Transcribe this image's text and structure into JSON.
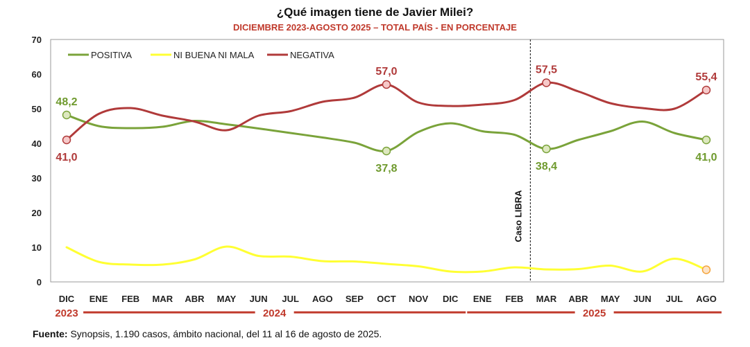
{
  "chart_data": {
    "type": "line",
    "title": "¿Qué imagen tiene de Javier Milei?",
    "subtitle": "DICIEMBRE 2023-AGOSTO 2025 – TOTAL PAÍS - EN PORCENTAJE",
    "categories": [
      "DIC",
      "ENE",
      "FEB",
      "MAR",
      "ABR",
      "MAY",
      "JUN",
      "JUL",
      "AGO",
      "SEP",
      "OCT",
      "NOV",
      "DIC",
      "ENE",
      "FEB",
      "MAR",
      "ABR",
      "MAY",
      "JUN",
      "JUL",
      "AGO"
    ],
    "years": [
      {
        "label": "2023",
        "from": 0,
        "to": 0
      },
      {
        "label": "2024",
        "from": 1,
        "to": 12
      },
      {
        "label": "2025",
        "from": 13,
        "to": 20
      }
    ],
    "ylim": [
      0,
      70
    ],
    "yticks": [
      0,
      10,
      20,
      30,
      40,
      50,
      60,
      70
    ],
    "series": [
      {
        "name": "POSITIVA",
        "color": "#7aa33a",
        "values": [
          48.2,
          45.0,
          44.4,
          44.8,
          46.5,
          45.5,
          44.3,
          43.0,
          41.7,
          40.2,
          37.8,
          43.3,
          45.8,
          43.5,
          42.5,
          38.4,
          41.0,
          43.5,
          46.3,
          43.0,
          41.0
        ]
      },
      {
        "name": "NI BUENA NI MALA",
        "color": "#ffff33",
        "values": [
          10.0,
          5.8,
          5.0,
          5.0,
          6.5,
          10.2,
          7.5,
          7.3,
          6.0,
          5.9,
          5.2,
          4.5,
          3.0,
          3.0,
          4.2,
          3.6,
          3.7,
          4.7,
          3.0,
          6.7,
          3.5
        ]
      },
      {
        "name": "NEGATIVA",
        "color": "#b03a3a",
        "values": [
          41.0,
          48.5,
          50.2,
          48.0,
          46.3,
          43.8,
          48.0,
          49.3,
          52.0,
          53.2,
          57.0,
          51.8,
          50.8,
          51.2,
          52.5,
          57.5,
          55.0,
          51.6,
          50.2,
          50.0,
          55.4
        ]
      }
    ],
    "data_labels": [
      {
        "series": 0,
        "index": 0,
        "text": "48,2",
        "pos": "above"
      },
      {
        "series": 0,
        "index": 10,
        "text": "37,8",
        "pos": "below"
      },
      {
        "series": 0,
        "index": 15,
        "text": "38,4",
        "pos": "below"
      },
      {
        "series": 0,
        "index": 20,
        "text": "41,0",
        "pos": "below"
      },
      {
        "series": 2,
        "index": 0,
        "text": "41,0",
        "pos": "below"
      },
      {
        "series": 2,
        "index": 10,
        "text": "57,0",
        "pos": "above"
      },
      {
        "series": 2,
        "index": 15,
        "text": "57,5",
        "pos": "above"
      },
      {
        "series": 2,
        "index": 20,
        "text": "55,4",
        "pos": "above"
      }
    ],
    "markers": [
      {
        "series": 0,
        "indices": [
          0,
          10,
          15,
          20
        ]
      },
      {
        "series": 1,
        "indices": [
          20
        ]
      },
      {
        "series": 2,
        "indices": [
          0,
          10,
          15,
          20
        ]
      }
    ],
    "annotation": {
      "text": "Caso LIBRA",
      "between": [
        14,
        15
      ]
    },
    "legend": "top-left",
    "grid": false
  },
  "source_label": "Fuente:",
  "source_text": " Synopsis, 1.190 casos, ámbito nacional, del 11 al 16 de agosto de 2025."
}
